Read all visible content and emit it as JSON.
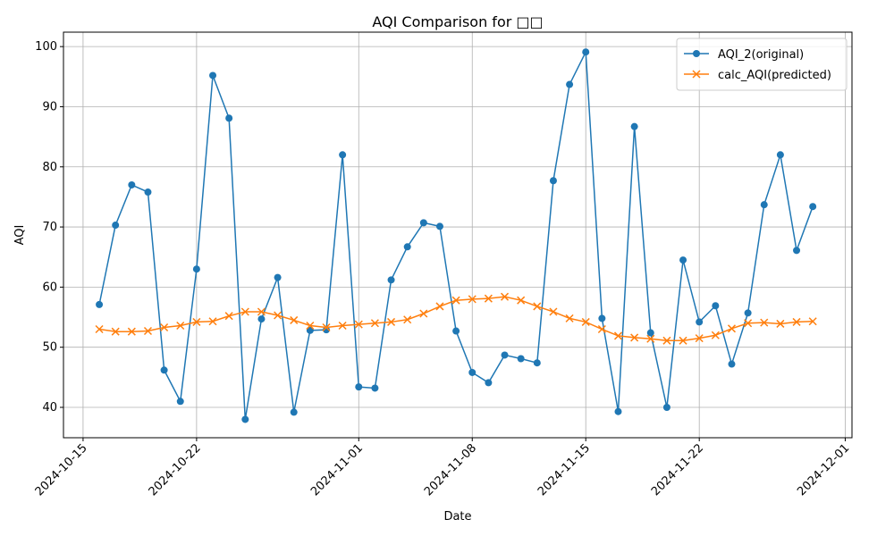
{
  "chart_data": {
    "type": "line",
    "title": "AQI Comparison for □□",
    "xlabel": "Date",
    "ylabel": "AQI",
    "x": [
      "2024-10-16",
      "2024-10-17",
      "2024-10-18",
      "2024-10-19",
      "2024-10-20",
      "2024-10-21",
      "2024-10-22",
      "2024-10-23",
      "2024-10-24",
      "2024-10-25",
      "2024-10-26",
      "2024-10-27",
      "2024-10-28",
      "2024-10-29",
      "2024-10-30",
      "2024-10-31",
      "2024-11-01",
      "2024-11-02",
      "2024-11-03",
      "2024-11-04",
      "2024-11-05",
      "2024-11-06",
      "2024-11-07",
      "2024-11-08",
      "2024-11-09",
      "2024-11-10",
      "2024-11-11",
      "2024-11-12",
      "2024-11-13",
      "2024-11-14",
      "2024-11-15",
      "2024-11-16",
      "2024-11-17",
      "2024-11-18",
      "2024-11-19",
      "2024-11-20",
      "2024-11-21",
      "2024-11-22",
      "2024-11-23",
      "2024-11-24",
      "2024-11-25",
      "2024-11-26",
      "2024-11-27",
      "2024-11-28",
      "2024-11-29"
    ],
    "series": [
      {
        "name": "AQI_2(original)",
        "color": "#1f77b4",
        "marker": "o",
        "values": [
          57.1,
          70.3,
          77.0,
          75.8,
          46.2,
          41.0,
          63.0,
          95.2,
          88.1,
          38.0,
          54.7,
          61.6,
          39.2,
          52.8,
          52.9,
          82.0,
          43.4,
          43.2,
          61.2,
          66.7,
          70.7,
          70.1,
          52.7,
          45.8,
          44.1,
          48.7,
          48.1,
          47.4,
          77.7,
          93.7,
          99.1,
          54.8,
          39.3,
          86.7,
          52.4,
          40.0,
          64.5,
          54.2,
          56.9,
          47.2,
          55.7,
          73.7,
          82.0,
          66.1,
          73.4
        ]
      },
      {
        "name": "calc_AQI(predicted)",
        "color": "#ff7f0e",
        "marker": "x",
        "values": [
          53.0,
          52.6,
          52.6,
          52.7,
          53.3,
          53.6,
          54.2,
          54.3,
          55.2,
          55.9,
          55.9,
          55.3,
          54.5,
          53.6,
          53.3,
          53.6,
          53.8,
          54.0,
          54.2,
          54.6,
          55.6,
          56.8,
          57.8,
          58.0,
          58.1,
          58.4,
          57.8,
          56.8,
          55.9,
          54.8,
          54.2,
          53.0,
          51.9,
          51.6,
          51.4,
          51.1,
          51.1,
          51.5,
          52.0,
          53.1,
          54.0,
          54.1,
          53.9,
          54.2,
          54.3
        ]
      }
    ],
    "xlim": [
      "2024-10-13T19:00",
      "2024-12-01T10:00"
    ],
    "xticks": [
      "2024-10-15",
      "2024-10-22",
      "2024-11-01",
      "2024-11-08",
      "2024-11-15",
      "2024-11-22",
      "2024-12-01"
    ],
    "ylim": [
      34.95,
      102.4
    ],
    "yticks": [
      40,
      50,
      60,
      70,
      80,
      90,
      100
    ],
    "grid": true,
    "legend": "upper right"
  }
}
